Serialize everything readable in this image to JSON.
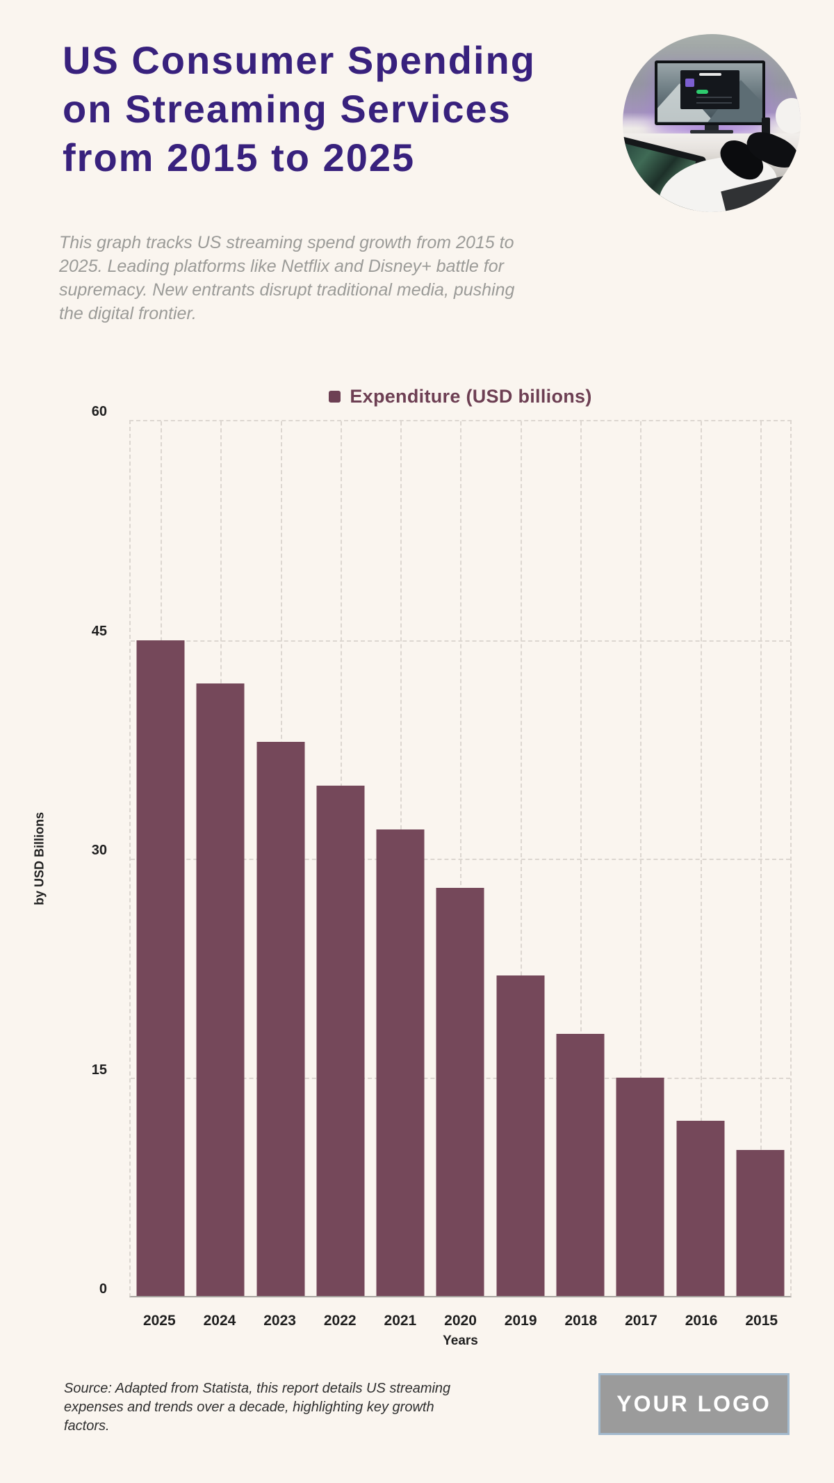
{
  "header": {
    "title_lines": [
      "US Consumer Spending",
      "on Streaming Services",
      "from 2015 to 2025"
    ],
    "description_lines": [
      "This graph tracks US streaming spend growth from 2015 to",
      "2025. Leading platforms like Netflix and Disney+ battle for",
      "supremacy. New entrants disrupt traditional media, pushing",
      "the digital frontier."
    ]
  },
  "chart_data": {
    "type": "bar",
    "legend": "Expenditure (USD billions)",
    "categories": [
      "2025",
      "2024",
      "2023",
      "2022",
      "2021",
      "2020",
      "2019",
      "2018",
      "2017",
      "2016",
      "2015"
    ],
    "values": [
      45,
      42,
      38,
      35,
      32,
      28,
      22,
      18,
      15,
      12,
      10
    ],
    "xlabel": "Years",
    "ylabel": "by USD Billions",
    "ylim": [
      0,
      60
    ],
    "yticks": [
      0,
      15,
      30,
      45,
      60
    ],
    "grid": "dashed",
    "legend_position": "top-center",
    "bar_color": "#75485a"
  },
  "footer": {
    "source_lines": [
      "Source: Adapted from Statista, this report details US streaming",
      "expenses and trends over a decade, highlighting key growth",
      "factors."
    ],
    "logo_text": "YOUR LOGO"
  },
  "colors": {
    "background": "#faf5ef",
    "title": "#38217d",
    "description": "#9b9b98",
    "bar": "#75485a",
    "legend_text": "#6d3f53",
    "axis_label": "#1f1f1f",
    "gridline": "#dcd6d0",
    "axis_line": "#a6a39f",
    "source_text": "#2f2f2f",
    "logo_background": "#9b9b9b",
    "logo_border": "#a2b9cd",
    "logo_text_color": "#ffffff"
  }
}
